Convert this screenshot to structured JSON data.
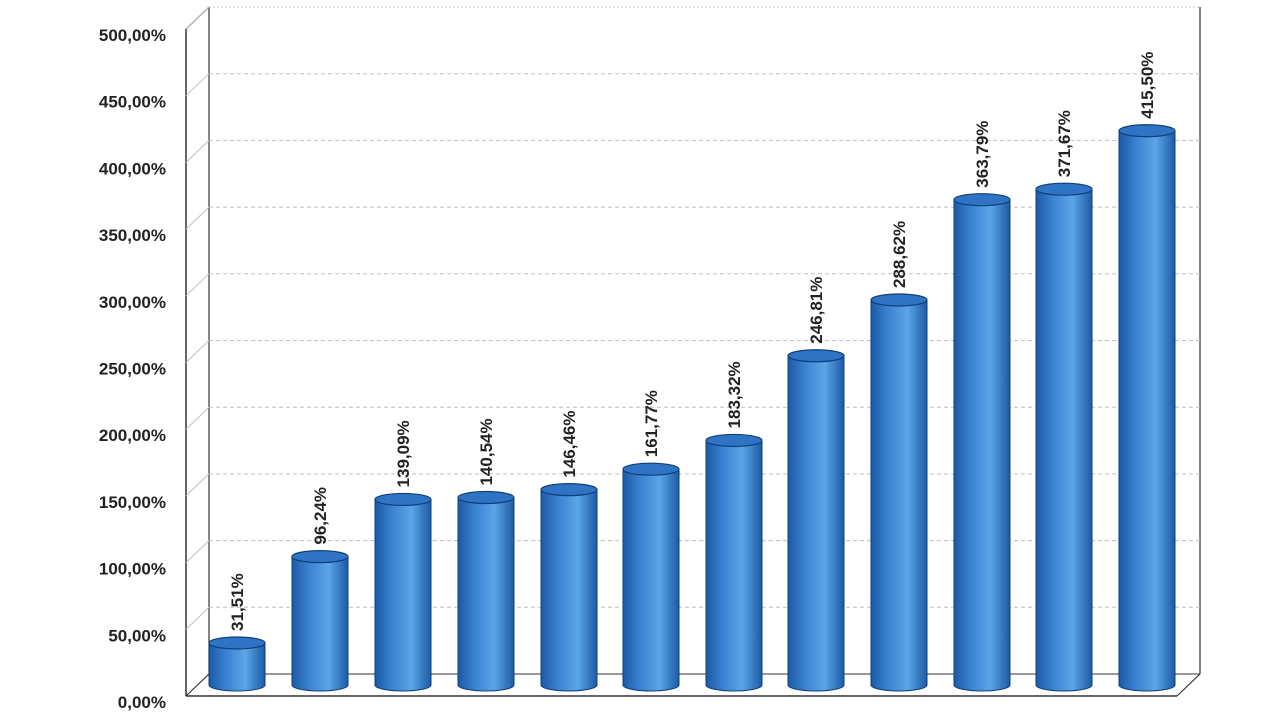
{
  "chart_data": {
    "type": "bar",
    "style": "3d-cylinder",
    "categories": [
      "",
      "",
      "",
      "",
      "",
      "",
      "",
      "",
      "",
      "",
      "",
      ""
    ],
    "values": [
      31.51,
      96.24,
      139.09,
      140.54,
      146.46,
      161.77,
      183.32,
      246.81,
      288.62,
      363.79,
      371.67,
      415.5
    ],
    "data_labels": [
      "31,51%",
      "96,24%",
      "139,09%",
      "140,54%",
      "146,46%",
      "161,77%",
      "183,32%",
      "246,81%",
      "288,62%",
      "363,79%",
      "371,67%",
      "415,50%"
    ],
    "y_ticks": [
      0,
      50,
      100,
      150,
      200,
      250,
      300,
      350,
      400,
      450,
      500
    ],
    "y_tick_labels": [
      "0,00%",
      "50,00%",
      "100,00%",
      "150,00%",
      "200,00%",
      "250,00%",
      "300,00%",
      "350,00%",
      "400,00%",
      "450,00%",
      "500,00%"
    ],
    "ylim": [
      0,
      500
    ],
    "title": "",
    "xlabel": "",
    "ylabel": "",
    "grid": true,
    "legend": "none",
    "colors": {
      "bar_dark": "#1c5aa6",
      "bar_mid": "#3a82d0",
      "bar_light": "#5aa6e6",
      "bar_top": "#2f74c4",
      "grid": "#bfbfbf",
      "axis": "#333333",
      "text": "#222222"
    }
  }
}
